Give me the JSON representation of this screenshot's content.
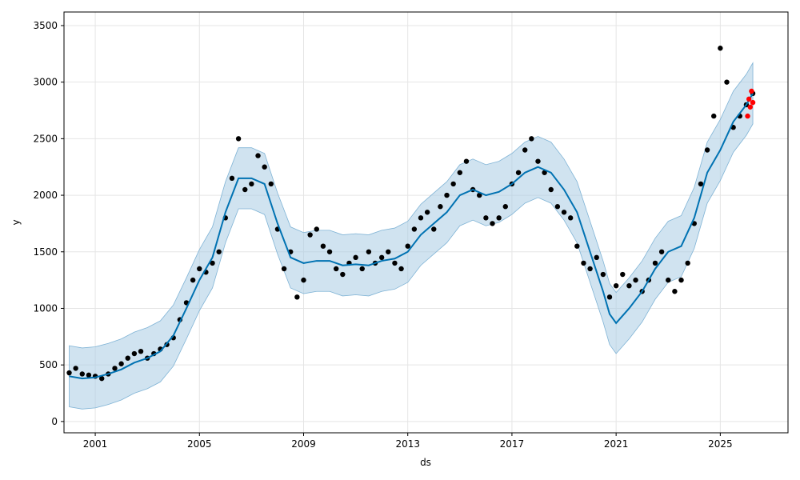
{
  "chart_data": {
    "type": "scatter",
    "xlabel": "ds",
    "ylabel": "y",
    "x_ticks": [
      2001,
      2005,
      2009,
      2013,
      2017,
      2021,
      2025
    ],
    "x_tick_labels": [
      "2001",
      "2005",
      "2009",
      "2013",
      "2017",
      "2021",
      "2025"
    ],
    "y_ticks": [
      0,
      500,
      1000,
      1500,
      2000,
      2500,
      3000,
      3500
    ],
    "y_tick_labels": [
      "0",
      "500",
      "1000",
      "1500",
      "2000",
      "2500",
      "3000",
      "3500"
    ],
    "xlim": [
      1999.8,
      2027.6
    ],
    "ylim": [
      -100,
      3620
    ],
    "grid": true,
    "colors": {
      "observed": "#000000",
      "forecast_points": "#ff0000",
      "trend_line": "#0072b2",
      "interval_band": "#a9cce3"
    },
    "series": [
      {
        "role": "observed",
        "points": [
          [
            2000.0,
            430
          ],
          [
            2000.25,
            470
          ],
          [
            2000.5,
            420
          ],
          [
            2000.75,
            410
          ],
          [
            2001.0,
            400
          ],
          [
            2001.25,
            380
          ],
          [
            2001.5,
            420
          ],
          [
            2001.75,
            470
          ],
          [
            2002.0,
            510
          ],
          [
            2002.25,
            560
          ],
          [
            2002.5,
            600
          ],
          [
            2002.75,
            620
          ],
          [
            2003.0,
            560
          ],
          [
            2003.25,
            600
          ],
          [
            2003.5,
            640
          ],
          [
            2003.75,
            680
          ],
          [
            2004.0,
            740
          ],
          [
            2004.25,
            900
          ],
          [
            2004.5,
            1050
          ],
          [
            2004.75,
            1250
          ],
          [
            2005.0,
            1350
          ],
          [
            2005.25,
            1320
          ],
          [
            2005.5,
            1400
          ],
          [
            2005.75,
            1500
          ],
          [
            2006.0,
            1800
          ],
          [
            2006.25,
            2150
          ],
          [
            2006.5,
            2500
          ],
          [
            2006.75,
            2050
          ],
          [
            2007.0,
            2100
          ],
          [
            2007.25,
            2350
          ],
          [
            2007.5,
            2250
          ],
          [
            2007.75,
            2100
          ],
          [
            2008.0,
            1700
          ],
          [
            2008.25,
            1350
          ],
          [
            2008.5,
            1500
          ],
          [
            2008.75,
            1100
          ],
          [
            2009.0,
            1250
          ],
          [
            2009.25,
            1650
          ],
          [
            2009.5,
            1700
          ],
          [
            2009.75,
            1550
          ],
          [
            2010.0,
            1500
          ],
          [
            2010.25,
            1350
          ],
          [
            2010.5,
            1300
          ],
          [
            2010.75,
            1400
          ],
          [
            2011.0,
            1450
          ],
          [
            2011.25,
            1350
          ],
          [
            2011.5,
            1500
          ],
          [
            2011.75,
            1400
          ],
          [
            2012.0,
            1450
          ],
          [
            2012.25,
            1500
          ],
          [
            2012.5,
            1400
          ],
          [
            2012.75,
            1350
          ],
          [
            2013.0,
            1550
          ],
          [
            2013.25,
            1700
          ],
          [
            2013.5,
            1800
          ],
          [
            2013.75,
            1850
          ],
          [
            2014.0,
            1700
          ],
          [
            2014.25,
            1900
          ],
          [
            2014.5,
            2000
          ],
          [
            2014.75,
            2100
          ],
          [
            2015.0,
            2200
          ],
          [
            2015.25,
            2300
          ],
          [
            2015.5,
            2050
          ],
          [
            2015.75,
            2000
          ],
          [
            2016.0,
            1800
          ],
          [
            2016.25,
            1750
          ],
          [
            2016.5,
            1800
          ],
          [
            2016.75,
            1900
          ],
          [
            2017.0,
            2100
          ],
          [
            2017.25,
            2200
          ],
          [
            2017.5,
            2400
          ],
          [
            2017.75,
            2500
          ],
          [
            2018.0,
            2300
          ],
          [
            2018.25,
            2200
          ],
          [
            2018.5,
            2050
          ],
          [
            2018.75,
            1900
          ],
          [
            2019.0,
            1850
          ],
          [
            2019.25,
            1800
          ],
          [
            2019.5,
            1550
          ],
          [
            2019.75,
            1400
          ],
          [
            2020.0,
            1350
          ],
          [
            2020.25,
            1450
          ],
          [
            2020.5,
            1300
          ],
          [
            2020.75,
            1100
          ],
          [
            2021.0,
            1200
          ],
          [
            2021.25,
            1300
          ],
          [
            2021.5,
            1200
          ],
          [
            2021.75,
            1250
          ],
          [
            2022.0,
            1150
          ],
          [
            2022.25,
            1250
          ],
          [
            2022.5,
            1400
          ],
          [
            2022.75,
            1500
          ],
          [
            2023.0,
            1250
          ],
          [
            2023.25,
            1150
          ],
          [
            2023.5,
            1250
          ],
          [
            2023.75,
            1400
          ],
          [
            2024.0,
            1750
          ],
          [
            2024.25,
            2100
          ],
          [
            2024.5,
            2400
          ],
          [
            2024.75,
            2700
          ],
          [
            2025.0,
            3300
          ],
          [
            2025.25,
            3000
          ],
          [
            2025.5,
            2600
          ],
          [
            2025.75,
            2700
          ],
          [
            2026.0,
            2800
          ],
          [
            2026.25,
            2900
          ]
        ]
      },
      {
        "role": "trend",
        "points": [
          [
            2000.0,
            400
          ],
          [
            2000.5,
            380
          ],
          [
            2001.0,
            390
          ],
          [
            2001.5,
            420
          ],
          [
            2002.0,
            460
          ],
          [
            2002.5,
            520
          ],
          [
            2003.0,
            560
          ],
          [
            2003.5,
            620
          ],
          [
            2004.0,
            760
          ],
          [
            2004.5,
            1000
          ],
          [
            2005.0,
            1250
          ],
          [
            2005.5,
            1450
          ],
          [
            2006.0,
            1850
          ],
          [
            2006.5,
            2150
          ],
          [
            2007.0,
            2150
          ],
          [
            2007.5,
            2100
          ],
          [
            2008.0,
            1750
          ],
          [
            2008.5,
            1450
          ],
          [
            2009.0,
            1400
          ],
          [
            2009.5,
            1420
          ],
          [
            2010.0,
            1420
          ],
          [
            2010.5,
            1380
          ],
          [
            2011.0,
            1390
          ],
          [
            2011.5,
            1380
          ],
          [
            2012.0,
            1420
          ],
          [
            2012.5,
            1440
          ],
          [
            2013.0,
            1500
          ],
          [
            2013.5,
            1650
          ],
          [
            2014.0,
            1750
          ],
          [
            2014.5,
            1850
          ],
          [
            2015.0,
            2000
          ],
          [
            2015.5,
            2050
          ],
          [
            2016.0,
            2000
          ],
          [
            2016.5,
            2030
          ],
          [
            2017.0,
            2100
          ],
          [
            2017.5,
            2200
          ],
          [
            2018.0,
            2250
          ],
          [
            2018.5,
            2200
          ],
          [
            2019.0,
            2050
          ],
          [
            2019.5,
            1850
          ],
          [
            2020.0,
            1500
          ],
          [
            2020.5,
            1150
          ],
          [
            2020.75,
            950
          ],
          [
            2021.0,
            870
          ],
          [
            2021.5,
            1000
          ],
          [
            2022.0,
            1150
          ],
          [
            2022.5,
            1350
          ],
          [
            2023.0,
            1500
          ],
          [
            2023.5,
            1550
          ],
          [
            2024.0,
            1800
          ],
          [
            2024.5,
            2200
          ],
          [
            2025.0,
            2400
          ],
          [
            2025.5,
            2650
          ],
          [
            2026.0,
            2800
          ],
          [
            2026.25,
            2900
          ]
        ]
      },
      {
        "role": "forecast",
        "points": [
          [
            2026.05,
            2700
          ],
          [
            2026.1,
            2850
          ],
          [
            2026.15,
            2780
          ],
          [
            2026.2,
            2920
          ],
          [
            2026.25,
            2820
          ]
        ]
      }
    ]
  }
}
